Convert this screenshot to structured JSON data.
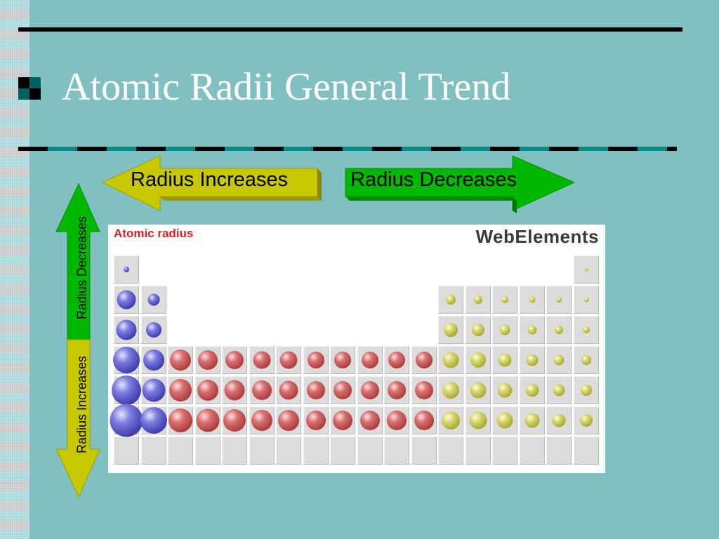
{
  "slide": {
    "title": "Atomic Radii General Trend"
  },
  "arrows": {
    "left": {
      "label": "Radius Increases",
      "color": "#c8c800"
    },
    "right": {
      "label": "Radius Decreases",
      "color": "#00b800"
    },
    "up": {
      "label": "Radius Decreases",
      "color": "#00b800"
    },
    "down": {
      "label": "Radius Increases",
      "color": "#c8c800"
    }
  },
  "table": {
    "heading": "Atomic radius",
    "brand": "WebElements",
    "colors": {
      "s": "#4040b0",
      "d": "#b04040",
      "p": "#b0b040"
    },
    "rows": [
      [
        1,
        0,
        0,
        0,
        0,
        0,
        0,
        0,
        0,
        0,
        0,
        0,
        0,
        0,
        0,
        0,
        0,
        1
      ],
      [
        1,
        1,
        0,
        0,
        0,
        0,
        0,
        0,
        0,
        0,
        0,
        0,
        1,
        1,
        1,
        1,
        1,
        1
      ],
      [
        1,
        1,
        0,
        0,
        0,
        0,
        0,
        0,
        0,
        0,
        0,
        0,
        1,
        1,
        1,
        1,
        1,
        1
      ],
      [
        1,
        1,
        1,
        1,
        1,
        1,
        1,
        1,
        1,
        1,
        1,
        1,
        1,
        1,
        1,
        1,
        1,
        1
      ],
      [
        1,
        1,
        1,
        1,
        1,
        1,
        1,
        1,
        1,
        1,
        1,
        1,
        1,
        1,
        1,
        1,
        1,
        1
      ],
      [
        1,
        1,
        1,
        1,
        1,
        1,
        1,
        1,
        1,
        1,
        1,
        1,
        1,
        1,
        1,
        1,
        1,
        1
      ],
      [
        1,
        1,
        1,
        1,
        1,
        1,
        1,
        1,
        1,
        1,
        1,
        1,
        1,
        1,
        1,
        1,
        1,
        1
      ]
    ],
    "radii": [
      [
        8,
        0,
        0,
        0,
        0,
        0,
        0,
        0,
        0,
        0,
        0,
        0,
        0,
        0,
        0,
        0,
        0,
        5
      ],
      [
        27,
        17,
        0,
        0,
        0,
        0,
        0,
        0,
        0,
        0,
        0,
        0,
        14,
        12,
        10,
        9,
        8,
        7
      ],
      [
        29,
        22,
        0,
        0,
        0,
        0,
        0,
        0,
        0,
        0,
        0,
        0,
        20,
        18,
        15,
        13,
        12,
        10
      ],
      [
        38,
        30,
        30,
        28,
        26,
        25,
        25,
        24,
        24,
        24,
        24,
        24,
        23,
        22,
        19,
        17,
        15,
        14
      ],
      [
        42,
        33,
        32,
        30,
        29,
        28,
        27,
        26,
        26,
        26,
        26,
        26,
        24,
        23,
        21,
        19,
        17,
        16
      ],
      [
        47,
        38,
        34,
        33,
        32,
        30,
        30,
        28,
        28,
        28,
        28,
        28,
        26,
        25,
        23,
        21,
        19,
        18
      ],
      [
        0,
        0,
        0,
        0,
        0,
        0,
        0,
        0,
        0,
        0,
        0,
        0,
        0,
        0,
        0,
        0,
        0,
        0
      ]
    ]
  }
}
